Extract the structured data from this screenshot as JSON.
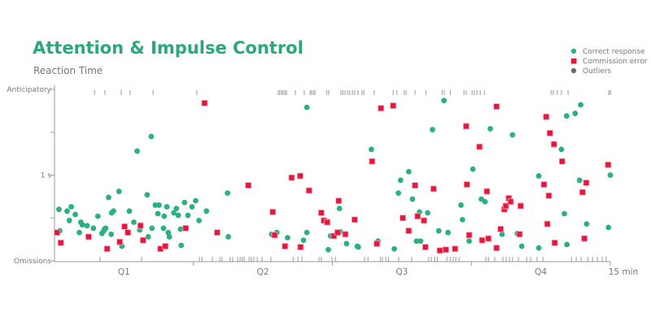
{
  "chart_data": {
    "type": "scatter",
    "title": "Attention & Impulse Control",
    "subtitle": "Reaction Time",
    "xlabel": "",
    "ylabel": "",
    "xlim": [
      0,
      15
    ],
    "ylim": [
      0,
      2
    ],
    "x_unit": "min",
    "y_unit": "s",
    "x_tick_values": [
      3.75,
      7.5,
      11.25,
      15
    ],
    "x_category_labels": [
      {
        "label": "Q1",
        "x": 1.875
      },
      {
        "label": "Q2",
        "x": 5.625
      },
      {
        "label": "Q3",
        "x": 9.375
      },
      {
        "label": "Q4",
        "x": 13.125
      }
    ],
    "x_end_label": "15 min",
    "y_ticks": [
      {
        "value": 2,
        "label": "Anticipatory"
      },
      {
        "value": 1.5,
        "label": ""
      },
      {
        "value": 1,
        "label": "1 s"
      },
      {
        "value": 0.5,
        "label": ""
      },
      {
        "value": 0,
        "label": "Omissions"
      }
    ],
    "legend": {
      "placement": "top-right",
      "items": [
        {
          "label": "Correct response",
          "color": "#2bb07f",
          "shape": "circle"
        },
        {
          "label": "Commission error",
          "color": "#e4173e",
          "shape": "square"
        },
        {
          "label": "Outliers",
          "color": "#6b6b6b",
          "shape": "circle"
        }
      ]
    },
    "series": [
      {
        "name": "Correct response",
        "color": "#2bb07f",
        "points": [
          [
            0.12,
            0.6
          ],
          [
            0.14,
            0.35
          ],
          [
            0.34,
            0.58
          ],
          [
            0.45,
            0.63
          ],
          [
            0.4,
            0.47
          ],
          [
            0.56,
            0.54
          ],
          [
            0.67,
            0.33
          ],
          [
            0.71,
            0.45
          ],
          [
            0.75,
            0.42
          ],
          [
            0.88,
            0.41
          ],
          [
            1.05,
            0.38
          ],
          [
            1.17,
            0.52
          ],
          [
            1.28,
            0.32
          ],
          [
            1.33,
            0.35
          ],
          [
            1.35,
            0.37
          ],
          [
            1.38,
            0.38
          ],
          [
            1.46,
            0.74
          ],
          [
            1.53,
            0.31
          ],
          [
            1.54,
            0.56
          ],
          [
            1.59,
            0.58
          ],
          [
            1.74,
            0.81
          ],
          [
            1.82,
            0.17
          ],
          [
            2.02,
            0.58
          ],
          [
            2.14,
            0.45
          ],
          [
            2.23,
            1.28
          ],
          [
            2.3,
            0.36
          ],
          [
            2.5,
            0.77
          ],
          [
            2.53,
            0.28
          ],
          [
            2.61,
            1.45
          ],
          [
            2.63,
            0.38
          ],
          [
            2.72,
            0.65
          ],
          [
            2.82,
            0.65
          ],
          [
            2.79,
            0.55
          ],
          [
            2.94,
            0.38
          ],
          [
            2.96,
            0.52
          ],
          [
            3.03,
            0.63
          ],
          [
            3.07,
            0.33
          ],
          [
            3.1,
            0.28
          ],
          [
            3.22,
            0.56
          ],
          [
            3.29,
            0.61
          ],
          [
            3.34,
            0.53
          ],
          [
            3.4,
            0.37
          ],
          [
            3.42,
            0.18
          ],
          [
            3.51,
            0.68
          ],
          [
            3.6,
            0.53
          ],
          [
            3.71,
            0.63
          ],
          [
            3.81,
            0.7
          ],
          [
            3.9,
            0.47
          ],
          [
            4.1,
            0.58
          ],
          [
            4.67,
            0.79
          ],
          [
            4.69,
            0.28
          ],
          [
            5.86,
            0.31
          ],
          [
            6.0,
            0.33
          ],
          [
            6.29,
            0.27
          ],
          [
            6.72,
            0.24
          ],
          [
            6.81,
            0.33
          ],
          [
            6.81,
            1.79
          ],
          [
            7.39,
            0.13
          ],
          [
            7.45,
            0.29
          ],
          [
            7.69,
            0.61
          ],
          [
            7.71,
            0.34
          ],
          [
            7.88,
            0.2
          ],
          [
            8.17,
            0.17
          ],
          [
            8.2,
            0.16
          ],
          [
            8.55,
            1.3
          ],
          [
            8.73,
            0.23
          ],
          [
            9.17,
            0.14
          ],
          [
            9.28,
            0.79
          ],
          [
            9.34,
            0.94
          ],
          [
            9.56,
            1.04
          ],
          [
            9.66,
            0.72
          ],
          [
            9.77,
            0.23
          ],
          [
            9.85,
            0.57
          ],
          [
            9.88,
            0.23
          ],
          [
            10.07,
            0.56
          ],
          [
            10.2,
            1.53
          ],
          [
            10.37,
            0.35
          ],
          [
            10.51,
            1.87
          ],
          [
            10.62,
            0.33
          ],
          [
            10.97,
            0.65
          ],
          [
            11.01,
            0.48
          ],
          [
            11.19,
            0.23
          ],
          [
            11.29,
            1.07
          ],
          [
            11.52,
            0.72
          ],
          [
            11.62,
            0.69
          ],
          [
            11.76,
            1.54
          ],
          [
            12.08,
            0.31
          ],
          [
            12.36,
            1.47
          ],
          [
            12.49,
            0.32
          ],
          [
            12.61,
            0.17
          ],
          [
            13.07,
            0.15
          ],
          [
            13.07,
            0.99
          ],
          [
            13.68,
            1.3
          ],
          [
            13.76,
            0.55
          ],
          [
            13.82,
            1.69
          ],
          [
            13.83,
            0.19
          ],
          [
            14.05,
            1.72
          ],
          [
            14.17,
            0.94
          ],
          [
            14.2,
            1.82
          ],
          [
            14.36,
            0.43
          ],
          [
            14.95,
            0.39
          ],
          [
            15.0,
            1.0
          ]
        ]
      },
      {
        "name": "Commission error",
        "color": "#e4173e",
        "points": [
          [
            0.07,
            0.33
          ],
          [
            0.17,
            0.21
          ],
          [
            0.92,
            0.28
          ],
          [
            1.42,
            0.14
          ],
          [
            1.76,
            0.22
          ],
          [
            1.89,
            0.4
          ],
          [
            1.98,
            0.33
          ],
          [
            2.32,
            0.41
          ],
          [
            2.39,
            0.24
          ],
          [
            2.86,
            0.14
          ],
          [
            2.99,
            0.17
          ],
          [
            3.54,
            0.38
          ],
          [
            4.05,
            1.84
          ],
          [
            4.39,
            0.33
          ],
          [
            5.23,
            0.88
          ],
          [
            5.89,
            0.57
          ],
          [
            5.94,
            0.3
          ],
          [
            6.22,
            0.17
          ],
          [
            6.4,
            0.97
          ],
          [
            6.63,
            0.99
          ],
          [
            6.64,
            0.16
          ],
          [
            6.87,
            0.82
          ],
          [
            7.2,
            0.56
          ],
          [
            7.27,
            0.47
          ],
          [
            7.36,
            0.45
          ],
          [
            7.54,
            0.29
          ],
          [
            7.64,
            0.33
          ],
          [
            7.67,
            0.7
          ],
          [
            7.85,
            0.31
          ],
          [
            8.1,
            0.48
          ],
          [
            8.57,
            1.16
          ],
          [
            8.7,
            0.2
          ],
          [
            8.81,
            1.78
          ],
          [
            9.14,
            1.81
          ],
          [
            9.4,
            0.5
          ],
          [
            9.56,
            0.35
          ],
          [
            9.73,
            0.88
          ],
          [
            9.8,
            0.52
          ],
          [
            9.97,
            0.47
          ],
          [
            10.01,
            0.16
          ],
          [
            10.23,
            0.84
          ],
          [
            10.4,
            0.12
          ],
          [
            10.56,
            0.13
          ],
          [
            10.81,
            0.14
          ],
          [
            11.11,
            1.57
          ],
          [
            11.13,
            0.89
          ],
          [
            11.19,
            0.3
          ],
          [
            11.47,
            1.33
          ],
          [
            11.54,
            0.24
          ],
          [
            11.67,
            0.81
          ],
          [
            11.71,
            0.26
          ],
          [
            11.93,
            1.8
          ],
          [
            11.93,
            0.15
          ],
          [
            12.04,
            0.37
          ],
          [
            12.14,
            0.6
          ],
          [
            12.18,
            0.64
          ],
          [
            12.26,
            0.73
          ],
          [
            12.31,
            0.69
          ],
          [
            12.58,
            0.64
          ],
          [
            12.55,
            0.31
          ],
          [
            13.21,
            0.89
          ],
          [
            13.27,
            1.68
          ],
          [
            13.3,
            0.43
          ],
          [
            13.34,
            0.76
          ],
          [
            13.37,
            1.49
          ],
          [
            13.48,
            1.36
          ],
          [
            13.5,
            0.21
          ],
          [
            13.7,
            1.16
          ],
          [
            14.25,
            0.8
          ],
          [
            14.3,
            0.26
          ],
          [
            14.35,
            0.91
          ],
          [
            14.94,
            1.12
          ]
        ]
      },
      {
        "name": "Outliers",
        "color": "#9a9a9a",
        "anticipatory_x": [
          1.08,
          1.36,
          1.8,
          2.04,
          2.66,
          3.84,
          6.04,
          6.08,
          6.13,
          6.17,
          6.22,
          6.26,
          6.5,
          6.74,
          6.9,
          6.94,
          6.99,
          7.03,
          7.34,
          7.4,
          7.73,
          7.78,
          7.84,
          7.91,
          7.97,
          8.04,
          8.1,
          8.19,
          8.3,
          8.35,
          8.63,
          9.14,
          9.24,
          9.44,
          9.49,
          9.73,
          10.02,
          10.46,
          10.52,
          10.68,
          11.05,
          11.11,
          11.27,
          11.33,
          11.4,
          11.49,
          11.6,
          13.4,
          13.46,
          13.57,
          13.68,
          13.86,
          14.96,
          15.0
        ],
        "omission_x": [
          1.23,
          2.35,
          3.91,
          3.98,
          4.26,
          4.46,
          4.52,
          4.74,
          4.81,
          4.94,
          5.01,
          5.07,
          5.12,
          5.25,
          5.31,
          5.38,
          5.47,
          5.6,
          5.84,
          6.44,
          6.57,
          6.68,
          7.14,
          7.2,
          7.49,
          7.58,
          8.37,
          8.46,
          8.79,
          8.85,
          8.94,
          9.01,
          9.29,
          9.64,
          10.1,
          10.17,
          10.26,
          10.33,
          10.59,
          10.68,
          10.76,
          10.83,
          10.92,
          11.64,
          11.71,
          11.88,
          12.1,
          12.19,
          12.28,
          12.36,
          12.52,
          12.74,
          12.85,
          13.02,
          13.18,
          13.95,
          14.08,
          14.21,
          14.39,
          14.52,
          14.65,
          14.78,
          14.89
        ]
      }
    ]
  }
}
